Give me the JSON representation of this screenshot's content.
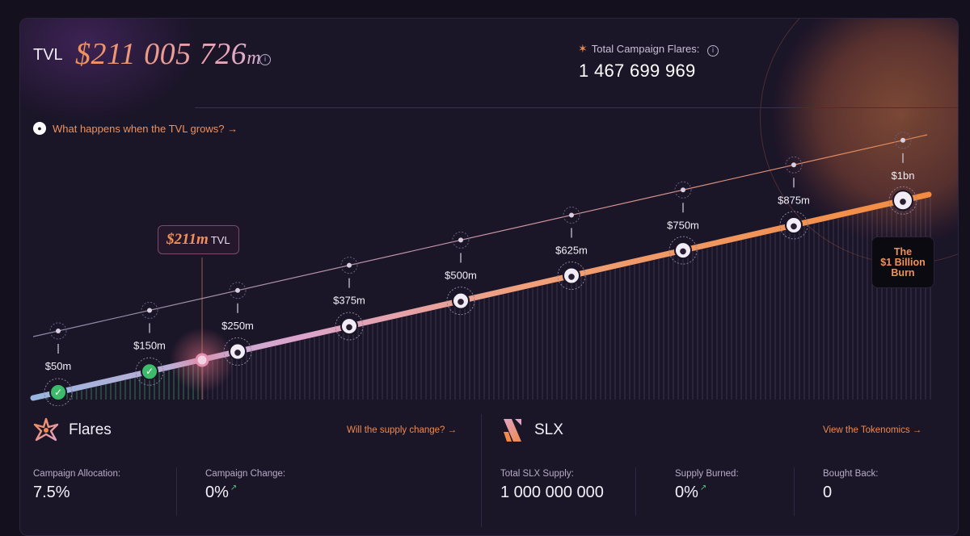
{
  "header": {
    "tvl_label": "TVL",
    "tvl_value": "$211 005 726",
    "tvl_unit": "m",
    "flares_title": "Total Campaign Flares:",
    "flares_total": "1 467 699 969",
    "grow_link": "What happens when the TVL grows? →"
  },
  "chart": {
    "current_tag": "$211m",
    "current_tag_unit": "TVL",
    "milestones": [
      "$50m",
      "$150m",
      "$250m",
      "$375m",
      "$500m",
      "$625m",
      "$750m",
      "$875m",
      "$1bn"
    ],
    "burn_line1": "The",
    "burn_line2": "$1 Billion",
    "burn_line3": "Burn"
  },
  "flares": {
    "title": "Flares",
    "link": "Will the supply change? →",
    "allocation_label": "Campaign Allocation:",
    "allocation_value": "7.5%",
    "change_label": "Campaign Change:",
    "change_value": "0%"
  },
  "slx": {
    "title": "SLX",
    "link": "View the Tokenomics →",
    "supply_label": "Total SLX Supply:",
    "supply_value": "1 000 000 000",
    "burned_label": "Supply Burned:",
    "burned_value": "0%",
    "bought_label": "Bought Back:",
    "bought_value": "0"
  },
  "colors": {
    "accent": "#f0915a",
    "success": "#3dbb6a",
    "panel": "#1b1528"
  }
}
